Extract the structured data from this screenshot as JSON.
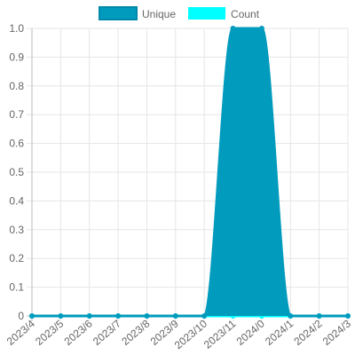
{
  "chart_data": {
    "type": "line",
    "categories": [
      "2023/4",
      "2023/5",
      "2023/6",
      "2023/7",
      "2023/8",
      "2023/9",
      "2023/10",
      "2023/11",
      "2024/0",
      "2024/1",
      "2024/2",
      "2024/3"
    ],
    "series": [
      {
        "name": "Unique",
        "color": "#009bbd",
        "values": [
          0,
          0,
          0,
          0,
          0,
          0,
          0,
          1,
          1,
          0,
          0,
          0
        ]
      },
      {
        "name": "Count",
        "color": "#00ffff",
        "values": [
          0,
          0,
          0,
          0,
          0,
          0,
          0,
          0,
          0,
          0,
          0,
          0
        ]
      }
    ],
    "ylim": [
      0,
      1
    ],
    "yticks": [
      0,
      0.1,
      0.2,
      0.3,
      0.4,
      0.5,
      0.6,
      0.7,
      0.8,
      0.9,
      {
        "value": 1,
        "label": "1.0"
      }
    ],
    "fill": true,
    "grid": true,
    "legend": "top"
  }
}
